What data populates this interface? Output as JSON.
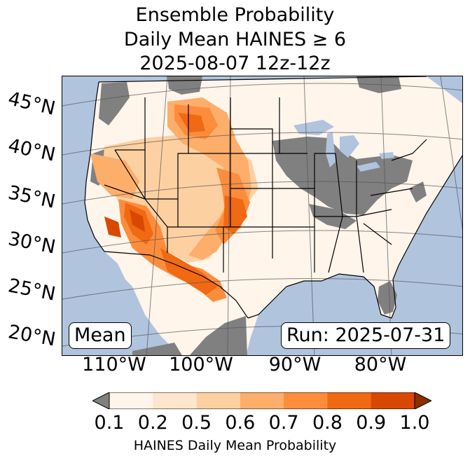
{
  "title": {
    "line1": "Ensemble Probability",
    "line2": "Daily Mean HAINES ≥ 6",
    "line3": "2025-08-07 12z-12z"
  },
  "map": {
    "latitude_labels": [
      "45°N",
      "40°N",
      "35°N",
      "30°N",
      "25°N",
      "20°N"
    ],
    "longitude_labels": [
      "110°W",
      "100°W",
      "90°W",
      "80°W"
    ],
    "left_box_label": "Mean",
    "right_box_label": "Run: 2025-07-31",
    "colors": {
      "ocean": "#b0c4de",
      "land_default": "#fff5eb",
      "masked": "#808080",
      "border": "#000000"
    }
  },
  "colorbar": {
    "title": "HAINES Daily Mean Probability",
    "tick_labels": [
      "0.1",
      "0.2",
      "0.5",
      "0.6",
      "0.7",
      "0.8",
      "0.9",
      "1.0"
    ],
    "colors": [
      "#fff5eb",
      "#fee6ce",
      "#fdd0a2",
      "#fdae6b",
      "#fd8d3c",
      "#f16913",
      "#d94801",
      "#8c2d04"
    ],
    "under_color": "#808080"
  }
}
